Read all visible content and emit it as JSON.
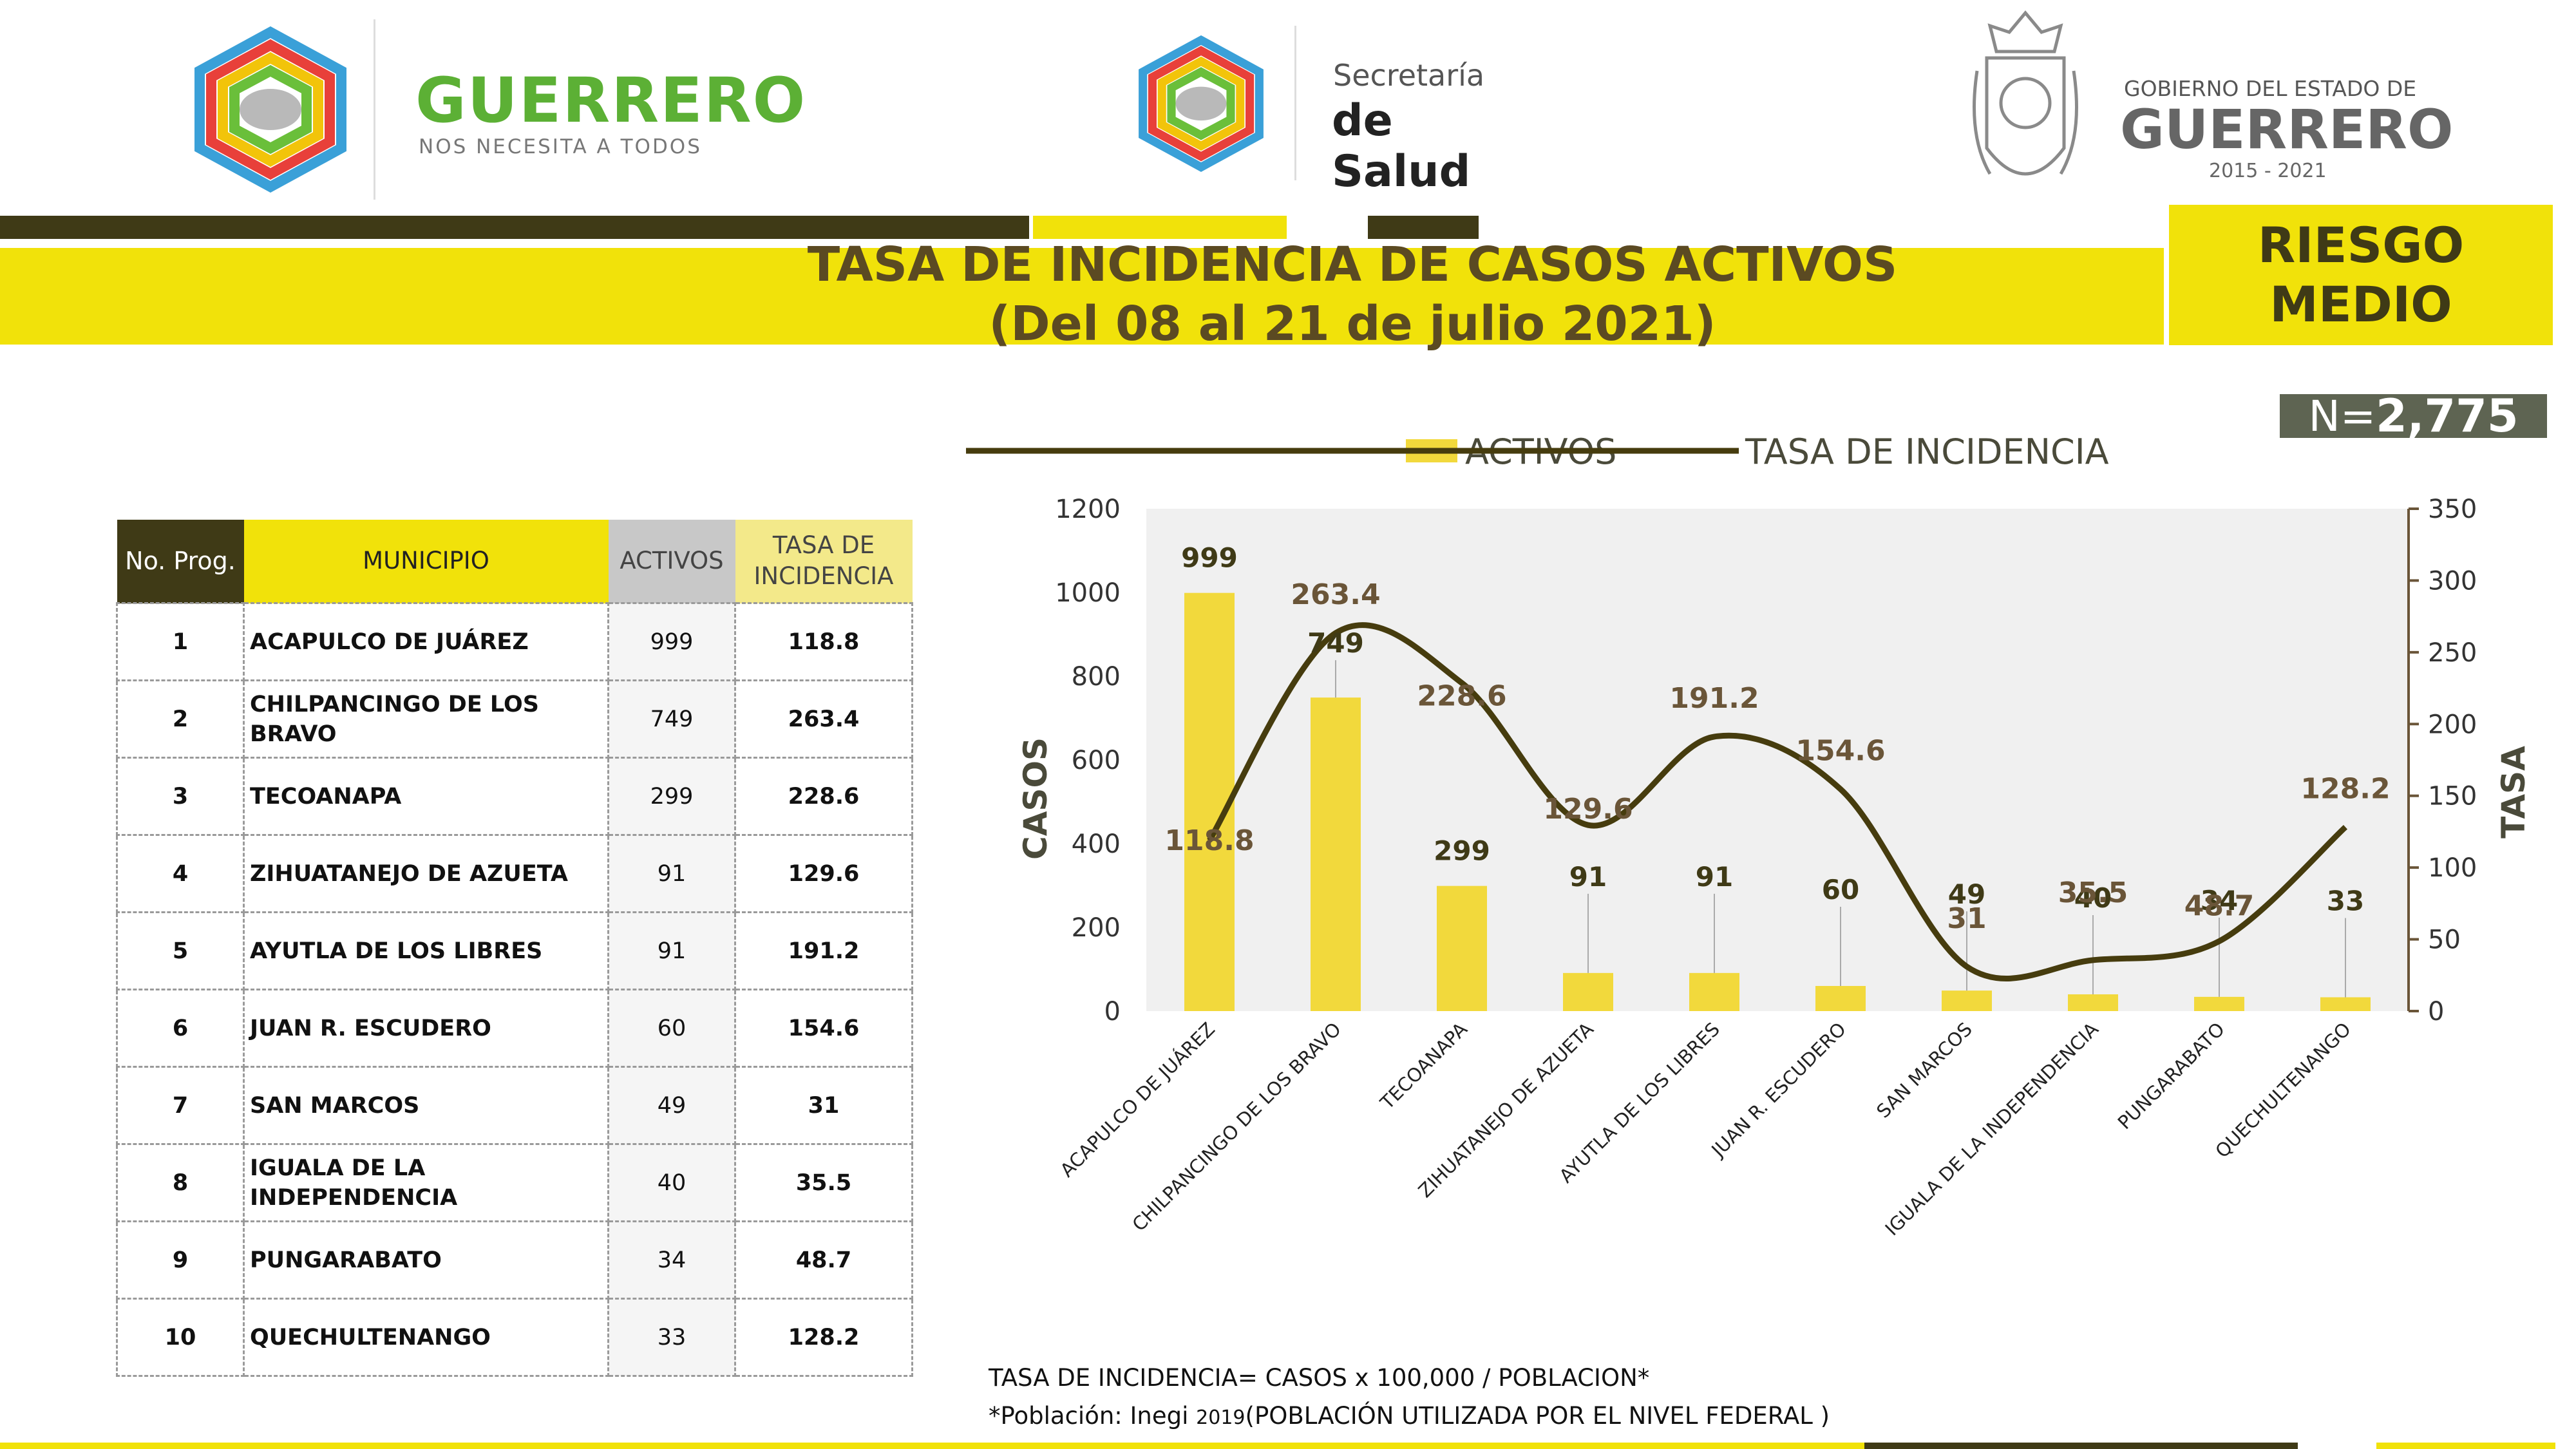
{
  "header": {
    "guerrero_logo": {
      "title": "GUERRERO",
      "subtitle": "NOS NECESITA A TODOS"
    },
    "salud_logo": {
      "line1": "Secretaría",
      "line2": "de Salud"
    },
    "gobierno_logo": {
      "line1": "GOBIERNO DEL ESTADO DE",
      "line2": "GUERRERO",
      "line3": "2015 - 2021"
    }
  },
  "title": {
    "line1": "TASA DE INCIDENCIA DE CASOS ACTIVOS",
    "line2": "(Del 08 al 21 de julio 2021)"
  },
  "risk": {
    "line1": "RIESGO",
    "line2": "MEDIO"
  },
  "total": {
    "prefix": "N=",
    "value": "2,775"
  },
  "colors": {
    "yellow": "#f1e20a",
    "bar": "#f2d93c",
    "dark": "#3f3a16",
    "line": "#463c0e",
    "tasa_header": "#f3e98a",
    "activos_header": "#c8c8c8"
  },
  "table": {
    "headers": {
      "no": "No. Prog.",
      "municipio": "MUNICIPIO",
      "activos": "ACTIVOS",
      "tasa_l1": "TASA DE",
      "tasa_l2": "INCIDENCIA"
    },
    "rows": [
      {
        "no": "1",
        "municipio": "ACAPULCO DE JUÁREZ",
        "activos": "999",
        "tasa": "118.8"
      },
      {
        "no": "2",
        "municipio": "CHILPANCINGO DE LOS BRAVO",
        "activos": "749",
        "tasa": "263.4"
      },
      {
        "no": "3",
        "municipio": "TECOANAPA",
        "activos": "299",
        "tasa": "228.6"
      },
      {
        "no": "4",
        "municipio": "ZIHUATANEJO DE AZUETA",
        "activos": "91",
        "tasa": "129.6"
      },
      {
        "no": "5",
        "municipio": "AYUTLA DE LOS LIBRES",
        "activos": "91",
        "tasa": "191.2"
      },
      {
        "no": "6",
        "municipio": "JUAN R. ESCUDERO",
        "activos": "60",
        "tasa": "154.6"
      },
      {
        "no": "7",
        "municipio": "SAN MARCOS",
        "activos": "49",
        "tasa": "31"
      },
      {
        "no": "8",
        "municipio": "IGUALA DE LA INDEPENDENCIA",
        "activos": "40",
        "tasa": "35.5"
      },
      {
        "no": "9",
        "municipio": "PUNGARABATO",
        "activos": "34",
        "tasa": "48.7"
      },
      {
        "no": "10",
        "municipio": "QUECHULTENANGO",
        "activos": "33",
        "tasa": "128.2"
      }
    ]
  },
  "chart_data": {
    "type": "bar",
    "categories": [
      "ACAPULCO DE JUÁREZ",
      "CHILPANCINGO DE LOS BRAVO",
      "TECOANAPA",
      "ZIHUATANEJO DE AZUETA",
      "AYUTLA DE LOS LIBRES",
      "JUAN R. ESCUDERO",
      "SAN MARCOS",
      "IGUALA DE LA INDEPENDENCIA",
      "PUNGARABATO",
      "QUECHULTENANGO"
    ],
    "series": [
      {
        "name": "ACTIVOS",
        "type": "bar",
        "axis": "left",
        "values": [
          999,
          749,
          299,
          91,
          91,
          60,
          49,
          40,
          34,
          33
        ]
      },
      {
        "name": "TASA DE INCIDENCIA",
        "type": "line",
        "axis": "right",
        "values": [
          118.8,
          263.4,
          228.6,
          129.6,
          191.2,
          154.6,
          31,
          35.5,
          48.7,
          128.2
        ]
      }
    ],
    "ylabel": "CASOS",
    "y2label": "TASA",
    "ylim": [
      0,
      1200
    ],
    "y2lim": [
      0,
      350
    ],
    "yticks": [
      0,
      200,
      400,
      600,
      800,
      1000,
      1200
    ],
    "y2ticks": [
      0,
      50,
      100,
      150,
      200,
      250,
      300,
      350
    ],
    "legend_position": "top",
    "grid": false
  },
  "notes": {
    "line1": "TASA DE INCIDENCIA= CASOS x 100,000 / POBLACION*",
    "line2_a": "*Población: Inegi ",
    "line2_b": "2019",
    "line2_c": "(POBLACIÓN UTILIZADA POR EL NIVEL FEDERAL )"
  }
}
